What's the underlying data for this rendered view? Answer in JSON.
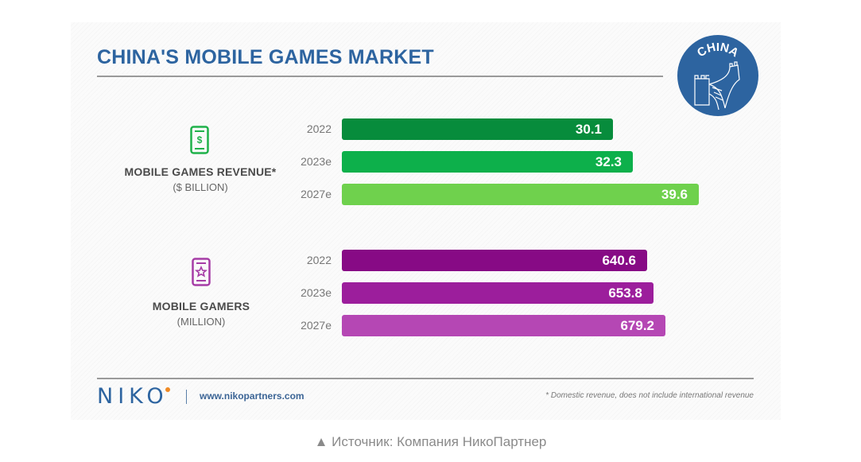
{
  "title": "CHINA'S MOBILE GAMES MARKET",
  "badge": {
    "text": "CHINA",
    "icon": "great-wall-icon",
    "color": "#2d64a0"
  },
  "chart_data": [
    {
      "type": "bar",
      "orientation": "horizontal",
      "title": "MOBILE GAMES REVENUE*",
      "unit": "($ BILLION)",
      "icon": "phone-dollar-icon",
      "categories": [
        "2022",
        "2023e",
        "2027e"
      ],
      "values": [
        30.1,
        32.3,
        39.6
      ],
      "value_labels": [
        "30.1",
        "32.3",
        "39.6"
      ],
      "colors": [
        "#078c3c",
        "#0db04b",
        "#6fd14d"
      ],
      "icon_color": "#1fb14a"
    },
    {
      "type": "bar",
      "orientation": "horizontal",
      "title": "MOBILE GAMERS",
      "unit": "(MILLION)",
      "icon": "phone-star-icon",
      "categories": [
        "2022",
        "2023e",
        "2027e"
      ],
      "values": [
        640.6,
        653.8,
        679.2
      ],
      "value_labels": [
        "640.6",
        "653.8",
        "679.2"
      ],
      "colors": [
        "#870a85",
        "#9c1e9c",
        "#b547b4"
      ],
      "icon_color": "#a63ca6"
    }
  ],
  "footer": {
    "logo": "NIKO",
    "url": "www.nikopartners.com",
    "footnote": "* Domestic revenue, does not include international revenue"
  },
  "caption": "▲ Источник: Компания НикоПартнер"
}
